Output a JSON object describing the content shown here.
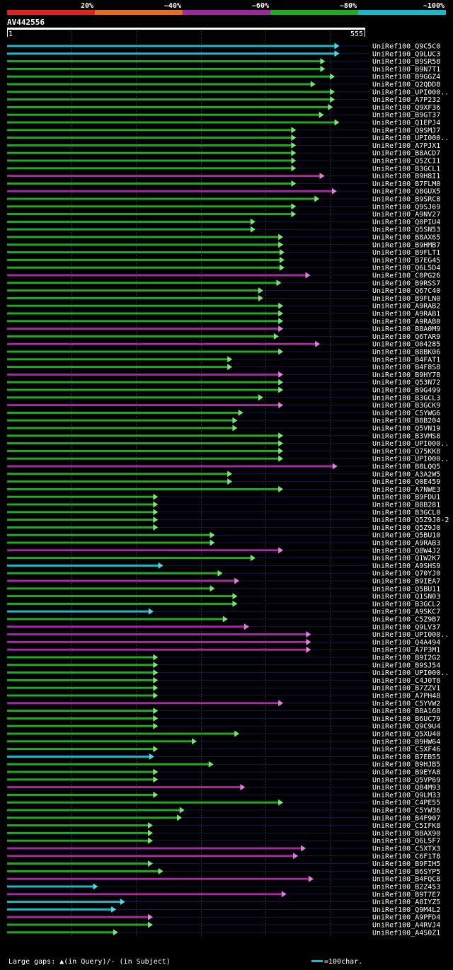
{
  "chart_data": {
    "type": "alignment-overview",
    "title": "AV442556",
    "query_range": {
      "start": "1",
      "end": "555"
    },
    "legend": {
      "identity_scale": [
        "20%",
        "~40%",
        "~60%",
        "~80%",
        "~100%"
      ],
      "colors": [
        "#dd2222",
        "#e07020",
        "#9a2a9a",
        "#22a822",
        "#1ab8c8"
      ],
      "gaps_text": "Large gaps: ▲(in Query)/- (in Subject)",
      "scale_text": "=100char."
    },
    "hits": [
      {
        "label": "UniRef100_Q9C5C0",
        "end": 515,
        "color": "cyan"
      },
      {
        "label": "UniRef100_Q9LUC3",
        "end": 515,
        "color": "cyan"
      },
      {
        "label": "UniRef100_B9SR58",
        "end": 493,
        "color": "green"
      },
      {
        "label": "UniRef100_B9N7T1",
        "end": 493,
        "color": "green"
      },
      {
        "label": "UniRef100_B9GGZ4",
        "end": 508,
        "color": "green"
      },
      {
        "label": "UniRef100_Q2QDD8",
        "end": 478,
        "color": "green"
      },
      {
        "label": "UniRef100_UPI000..",
        "end": 508,
        "color": "green"
      },
      {
        "label": "UniRef100_A7P232",
        "end": 508,
        "color": "green"
      },
      {
        "label": "UniRef100_Q9XF36",
        "end": 505,
        "color": "green"
      },
      {
        "label": "UniRef100_B9GT37",
        "end": 491,
        "color": "green"
      },
      {
        "label": "UniRef100_Q1EPJ4",
        "end": 515,
        "color": "green"
      },
      {
        "label": "UniRef100_Q9SMJ7",
        "end": 448,
        "color": "green"
      },
      {
        "label": "UniRef100_UPI000..",
        "end": 448,
        "color": "green"
      },
      {
        "label": "UniRef100_A7PJX1",
        "end": 448,
        "color": "green"
      },
      {
        "label": "UniRef100_B8ACD7",
        "end": 448,
        "color": "green"
      },
      {
        "label": "UniRef100_Q5ZCI1",
        "end": 448,
        "color": "green"
      },
      {
        "label": "UniRef100_B3GCL1",
        "end": 448,
        "color": "green"
      },
      {
        "label": "UniRef100_B9H8I1",
        "end": 492,
        "color": "magenta"
      },
      {
        "label": "UniRef100_B7FLM0",
        "end": 448,
        "color": "green"
      },
      {
        "label": "UniRef100_Q8GUX5",
        "end": 511,
        "color": "magenta"
      },
      {
        "label": "UniRef100_B9SRC8",
        "end": 484,
        "color": "green"
      },
      {
        "label": "UniRef100_Q9SJ69",
        "end": 448,
        "color": "green"
      },
      {
        "label": "UniRef100_A9NV27",
        "end": 448,
        "color": "green"
      },
      {
        "label": "UniRef100_Q0PIU4",
        "end": 385,
        "color": "green"
      },
      {
        "label": "UniRef100_Q5SN53",
        "end": 385,
        "color": "green"
      },
      {
        "label": "UniRef100_B8AX65",
        "end": 428,
        "color": "green"
      },
      {
        "label": "UniRef100_B9HMB7",
        "end": 428,
        "color": "green"
      },
      {
        "label": "UniRef100_B9FLT1",
        "end": 430,
        "color": "green"
      },
      {
        "label": "UniRef100_B7EG45",
        "end": 430,
        "color": "green"
      },
      {
        "label": "UniRef100_Q6L5D4",
        "end": 430,
        "color": "green"
      },
      {
        "label": "UniRef100_C0PG26",
        "end": 470,
        "color": "magenta"
      },
      {
        "label": "UniRef100_B9RSS7",
        "end": 425,
        "color": "green"
      },
      {
        "label": "UniRef100_Q67C40",
        "end": 397,
        "color": "green"
      },
      {
        "label": "UniRef100_B9FLN0",
        "end": 397,
        "color": "green"
      },
      {
        "label": "UniRef100_A9RAB2",
        "end": 428,
        "color": "green"
      },
      {
        "label": "UniRef100_A9RAB1",
        "end": 428,
        "color": "green"
      },
      {
        "label": "UniRef100_A9RAB0",
        "end": 428,
        "color": "green"
      },
      {
        "label": "UniRef100_B8A0M9",
        "end": 428,
        "color": "magenta"
      },
      {
        "label": "UniRef100_Q6TAR9",
        "end": 421,
        "color": "green"
      },
      {
        "label": "UniRef100_O04285",
        "end": 485,
        "color": "magenta"
      },
      {
        "label": "UniRef100_B8BK06",
        "end": 428,
        "color": "green"
      },
      {
        "label": "UniRef100_B4FAT1",
        "end": 349,
        "color": "green"
      },
      {
        "label": "UniRef100_B4F8S8",
        "end": 349,
        "color": "green"
      },
      {
        "label": "UniRef100_B9HY78",
        "end": 428,
        "color": "magenta"
      },
      {
        "label": "UniRef100_Q53N72",
        "end": 428,
        "color": "green"
      },
      {
        "label": "UniRef100_B9G499",
        "end": 428,
        "color": "green"
      },
      {
        "label": "UniRef100_B3GCL3",
        "end": 397,
        "color": "green"
      },
      {
        "label": "UniRef100_B3GCK9",
        "end": 428,
        "color": "magenta"
      },
      {
        "label": "UniRef100_C5YWG6",
        "end": 366,
        "color": "green"
      },
      {
        "label": "UniRef100_B8B204",
        "end": 357,
        "color": "green"
      },
      {
        "label": "UniRef100_Q5VN19",
        "end": 357,
        "color": "green"
      },
      {
        "label": "UniRef100_B3VMS8",
        "end": 428,
        "color": "green"
      },
      {
        "label": "UniRef100_UPI000..",
        "end": 428,
        "color": "green"
      },
      {
        "label": "UniRef100_Q75KK8",
        "end": 428,
        "color": "green"
      },
      {
        "label": "UniRef100_UPI000..",
        "end": 428,
        "color": "green"
      },
      {
        "label": "UniRef100_B8LQQ5",
        "end": 512,
        "color": "magenta"
      },
      {
        "label": "UniRef100_A3A2W5",
        "end": 349,
        "color": "green"
      },
      {
        "label": "UniRef100_Q0E459",
        "end": 349,
        "color": "green"
      },
      {
        "label": "UniRef100_A7NWE3",
        "end": 428,
        "color": "green"
      },
      {
        "label": "UniRef100_B9FDU1",
        "end": 234,
        "color": "green"
      },
      {
        "label": "UniRef100_B8B281",
        "end": 234,
        "color": "green"
      },
      {
        "label": "UniRef100_B3GCL0",
        "end": 234,
        "color": "green"
      },
      {
        "label": "UniRef100_Q5Z9J0-2",
        "end": 234,
        "color": "green"
      },
      {
        "label": "UniRef100_Q5Z9J0",
        "end": 234,
        "color": "green"
      },
      {
        "label": "UniRef100_Q5BU10",
        "end": 322,
        "color": "green"
      },
      {
        "label": "UniRef100_A9RAB3",
        "end": 322,
        "color": "green"
      },
      {
        "label": "UniRef100_Q8W4J2",
        "end": 428,
        "color": "magenta"
      },
      {
        "label": "UniRef100_Q1W2K7",
        "end": 385,
        "color": "green"
      },
      {
        "label": "UniRef100_A9SHS9",
        "end": 242,
        "color": "cyan"
      },
      {
        "label": "UniRef100_Q70YJ0",
        "end": 334,
        "color": "green"
      },
      {
        "label": "UniRef100_B9IEA7",
        "end": 360,
        "color": "magenta"
      },
      {
        "label": "UniRef100_Q5BU11",
        "end": 322,
        "color": "green"
      },
      {
        "label": "UniRef100_Q1SN03",
        "end": 357,
        "color": "green"
      },
      {
        "label": "UniRef100_B3GCL2",
        "end": 357,
        "color": "green"
      },
      {
        "label": "UniRef100_A9SKC7",
        "end": 227,
        "color": "cyan"
      },
      {
        "label": "UniRef100_C5Z9B7",
        "end": 342,
        "color": "green"
      },
      {
        "label": "UniRef100_Q9LV37",
        "end": 375,
        "color": "magenta"
      },
      {
        "label": "UniRef100_UPI000..",
        "end": 471,
        "color": "magenta"
      },
      {
        "label": "UniRef100_Q4A494",
        "end": 471,
        "color": "magenta"
      },
      {
        "label": "UniRef100_A7P3M1",
        "end": 471,
        "color": "magenta"
      },
      {
        "label": "UniRef100_B9I2G2",
        "end": 234,
        "color": "green"
      },
      {
        "label": "UniRef100_B9SJ54",
        "end": 234,
        "color": "green"
      },
      {
        "label": "UniRef100_UPI000..",
        "end": 234,
        "color": "green"
      },
      {
        "label": "UniRef100_C4J0T8",
        "end": 234,
        "color": "green"
      },
      {
        "label": "UniRef100_B7ZZV1",
        "end": 234,
        "color": "green"
      },
      {
        "label": "UniRef100_A7PH48",
        "end": 234,
        "color": "green"
      },
      {
        "label": "UniRef100_C5YVW2",
        "end": 428,
        "color": "magenta"
      },
      {
        "label": "UniRef100_B8A168",
        "end": 234,
        "color": "green"
      },
      {
        "label": "UniRef100_B6UC79",
        "end": 234,
        "color": "green"
      },
      {
        "label": "UniRef100_Q9C9U4",
        "end": 234,
        "color": "green"
      },
      {
        "label": "UniRef100_Q5XU40",
        "end": 360,
        "color": "green"
      },
      {
        "label": "UniRef100_B9HW64",
        "end": 294,
        "color": "green"
      },
      {
        "label": "UniRef100_C5XF46",
        "end": 234,
        "color": "green"
      },
      {
        "label": "UniRef100_B7EB55",
        "end": 228,
        "color": "cyan"
      },
      {
        "label": "UniRef100_B9HJB5",
        "end": 320,
        "color": "green"
      },
      {
        "label": "UniRef100_B9EYA8",
        "end": 234,
        "color": "green"
      },
      {
        "label": "UniRef100_Q5VP69",
        "end": 234,
        "color": "green"
      },
      {
        "label": "UniRef100_Q84M93",
        "end": 369,
        "color": "magenta"
      },
      {
        "label": "UniRef100_Q9LM33",
        "end": 234,
        "color": "green"
      },
      {
        "label": "UniRef100_C4PE55",
        "end": 428,
        "color": "green"
      },
      {
        "label": "UniRef100_C5YW36",
        "end": 275,
        "color": "green"
      },
      {
        "label": "UniRef100_B4F907",
        "end": 271,
        "color": "green"
      },
      {
        "label": "UniRef100_C5IFK8",
        "end": 226,
        "color": "green"
      },
      {
        "label": "UniRef100_B8AX90",
        "end": 226,
        "color": "green"
      },
      {
        "label": "UniRef100_Q6L5F7",
        "end": 226,
        "color": "green"
      },
      {
        "label": "UniRef100_C5XTX3",
        "end": 463,
        "color": "magenta"
      },
      {
        "label": "UniRef100_C6F1T8",
        "end": 451,
        "color": "magenta"
      },
      {
        "label": "UniRef100_B9FIH5",
        "end": 226,
        "color": "green"
      },
      {
        "label": "UniRef100_B6SYP5",
        "end": 242,
        "color": "green"
      },
      {
        "label": "UniRef100_B4FQC8",
        "end": 475,
        "color": "magenta"
      },
      {
        "label": "UniRef100_B2Z453",
        "end": 141,
        "color": "cyan"
      },
      {
        "label": "UniRef100_B9T7E7",
        "end": 433,
        "color": "magenta"
      },
      {
        "label": "UniRef100_A8IYZ5",
        "end": 183,
        "color": "cyan"
      },
      {
        "label": "UniRef100_Q9M4L2",
        "end": 169,
        "color": "cyan"
      },
      {
        "label": "UniRef100_A9PFD4",
        "end": 226,
        "color": "magenta"
      },
      {
        "label": "UniRef100_A4RVJ4",
        "end": 226,
        "color": "green"
      },
      {
        "label": "UniRef100_A4S0Z1",
        "end": 172,
        "color": "green"
      }
    ]
  }
}
